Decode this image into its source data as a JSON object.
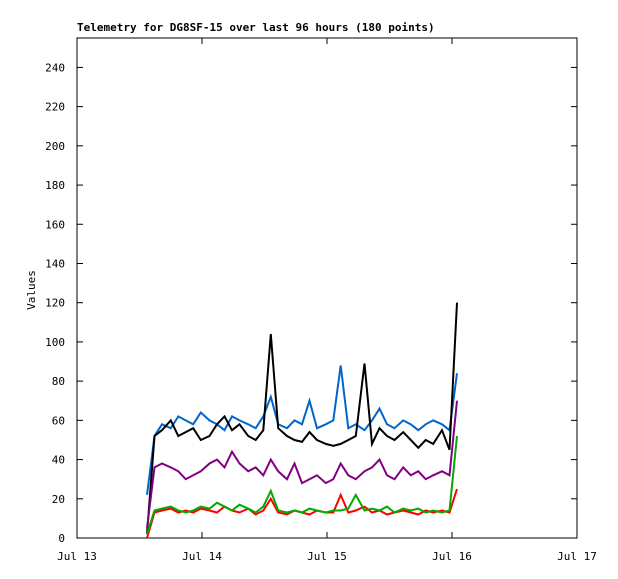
{
  "chart_data": {
    "type": "line",
    "title": "Telemetry for DG8SF-15 over last 96 hours (180 points)",
    "y_label": "Values",
    "x": [
      13.56,
      13.62,
      13.68,
      13.75,
      13.81,
      13.87,
      13.93,
      13.99,
      14.06,
      14.12,
      14.18,
      14.24,
      14.3,
      14.37,
      14.43,
      14.49,
      14.55,
      14.61,
      14.68,
      14.74,
      14.8,
      14.86,
      14.92,
      14.99,
      15.05,
      15.11,
      15.17,
      15.23,
      15.3,
      15.36,
      15.42,
      15.48,
      15.54,
      15.61,
      15.67,
      15.73,
      15.79,
      15.85,
      15.92,
      15.98,
      16.04
    ],
    "series": [
      {
        "color": "#0066cc",
        "values": [
          22,
          52,
          58,
          56,
          62,
          60,
          58,
          64,
          60,
          58,
          55,
          62,
          60,
          58,
          56,
          62,
          72,
          58,
          56,
          60,
          58,
          70,
          56,
          58,
          60,
          88,
          56,
          58,
          55,
          60,
          66,
          58,
          56,
          60,
          58,
          55,
          58,
          60,
          58,
          55,
          84
        ]
      },
      {
        "color": "#000000",
        "values": [
          2,
          52,
          55,
          60,
          52,
          54,
          56,
          50,
          52,
          58,
          62,
          55,
          58,
          52,
          50,
          55,
          104,
          56,
          52,
          50,
          49,
          54,
          50,
          48,
          47,
          48,
          50,
          52,
          89,
          48,
          56,
          52,
          50,
          54,
          50,
          46,
          50,
          48,
          55,
          45,
          120
        ]
      },
      {
        "color": "#800080",
        "values": [
          5,
          36,
          38,
          36,
          34,
          30,
          32,
          34,
          38,
          40,
          36,
          44,
          38,
          34,
          36,
          32,
          40,
          34,
          30,
          38,
          28,
          30,
          32,
          28,
          30,
          38,
          32,
          30,
          34,
          36,
          40,
          32,
          30,
          36,
          32,
          34,
          30,
          32,
          34,
          32,
          70
        ]
      },
      {
        "color": "#ff0000",
        "values": [
          0,
          13,
          14,
          15,
          13,
          14,
          13,
          15,
          14,
          13,
          16,
          14,
          13,
          15,
          12,
          14,
          20,
          13,
          12,
          14,
          13,
          12,
          14,
          13,
          13,
          22,
          13,
          14,
          16,
          13,
          14,
          12,
          13,
          14,
          13,
          12,
          14,
          13,
          14,
          13,
          25
        ]
      },
      {
        "color": "#00aa00",
        "values": [
          2,
          14,
          15,
          16,
          14,
          13,
          14,
          16,
          15,
          18,
          16,
          14,
          17,
          15,
          13,
          16,
          24,
          14,
          13,
          14,
          13,
          15,
          14,
          13,
          14,
          14,
          15,
          22,
          14,
          15,
          14,
          16,
          13,
          15,
          14,
          15,
          13,
          14,
          13,
          14,
          52
        ]
      }
    ],
    "xlim": [
      13,
      17
    ],
    "xticks": [
      {
        "value": 13,
        "label": "Jul 13"
      },
      {
        "value": 14,
        "label": "Jul 14"
      },
      {
        "value": 15,
        "label": "Jul 15"
      },
      {
        "value": 16,
        "label": "Jul 16"
      },
      {
        "value": 17,
        "label": "Jul 17"
      }
    ],
    "ylim": [
      0,
      255
    ],
    "yticks": [
      0,
      20,
      40,
      60,
      80,
      100,
      120,
      140,
      160,
      180,
      200,
      220,
      240
    ]
  }
}
